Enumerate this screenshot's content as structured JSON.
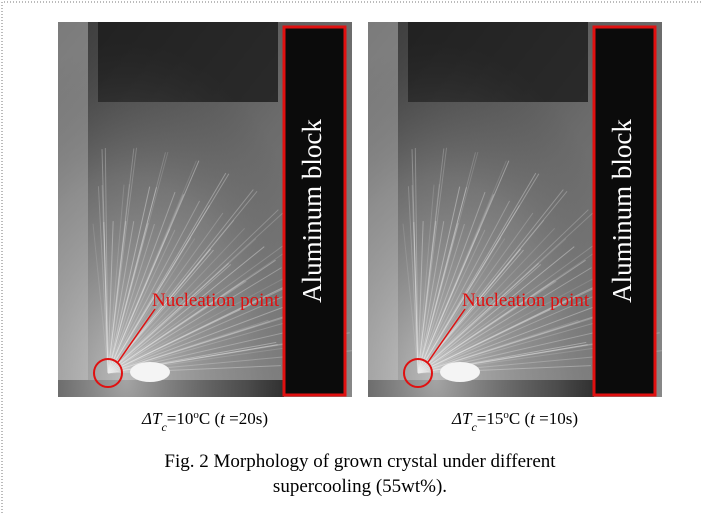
{
  "panels": [
    {
      "label": "Aluminum block",
      "annotation": "Nucleation point",
      "caption": [
        "ΔT",
        "c",
        "=10",
        "o",
        "C (",
        "t",
        " =20s)"
      ]
    },
    {
      "label": "Aluminum block",
      "annotation": "Nucleation point",
      "caption": [
        "ΔT",
        "c",
        "=15",
        "o",
        "C (",
        "t",
        " =10s)"
      ]
    }
  ],
  "figure_caption": {
    "lines": [
      "Fig. 2 Morphology of grown crystal under different",
      "supercooling (55wt%)."
    ]
  }
}
